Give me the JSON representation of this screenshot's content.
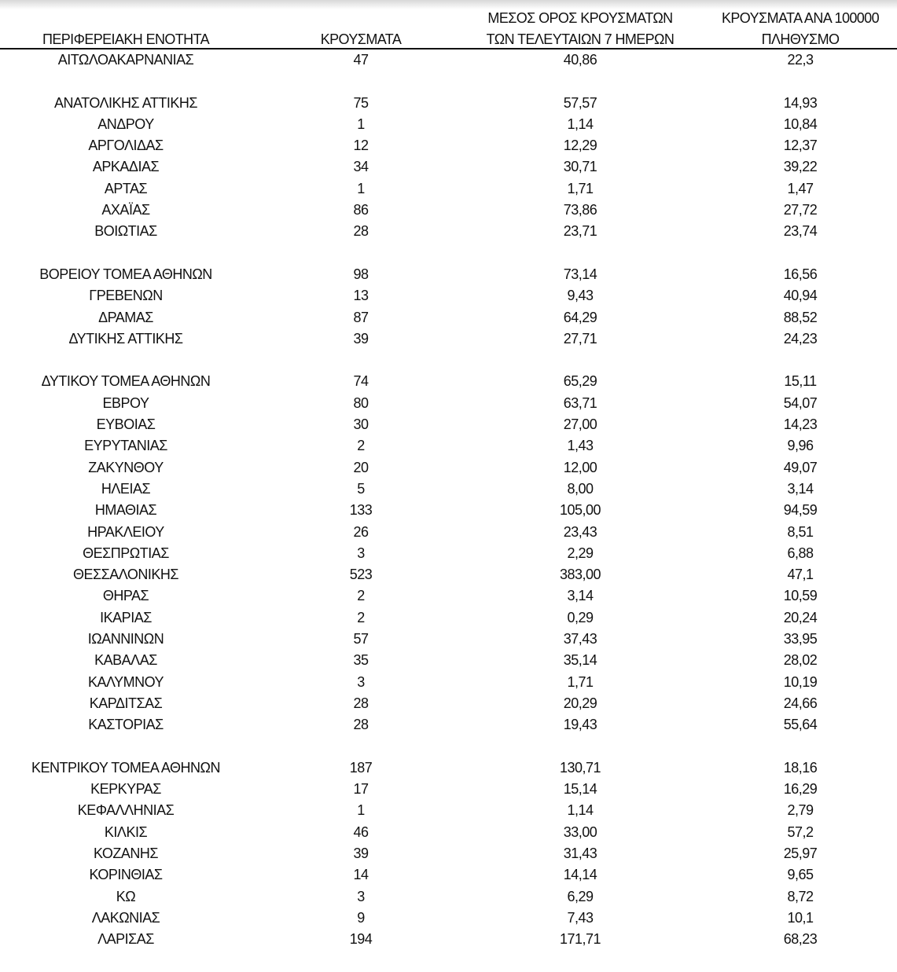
{
  "headers": {
    "region": "ΠΕΡΙΦΕΡΕΙΑΚΗ ΕΝΟΤΗΤΑ",
    "cases": "ΚΡΟΥΣΜΑΤΑ",
    "avg_line1": "ΜΕΣΟΣ ΟΡΟΣ ΚΡΟΥΣΜΑΤΩΝ",
    "avg_line2": "ΤΩΝ ΤΕΛΕΥΤΑΙΩΝ 7 ΗΜΕΡΩΝ",
    "per100k_line1": "ΚΡΟΥΣΜΑΤΑ ΑΝΑ 100000",
    "per100k_line2": "ΠΛΗΘΥΣΜΟ"
  },
  "groups": [
    [
      [
        "ΑΙΤΩΛΟΑΚΑΡΝΑΝΙΑΣ",
        "47",
        "40,86",
        "22,3"
      ]
    ],
    [
      [
        "ΑΝΑΤΟΛΙΚΗΣ ΑΤΤΙΚΗΣ",
        "75",
        "57,57",
        "14,93"
      ],
      [
        "ΑΝΔΡΟΥ",
        "1",
        "1,14",
        "10,84"
      ],
      [
        "ΑΡΓΟΛΙΔΑΣ",
        "12",
        "12,29",
        "12,37"
      ],
      [
        "ΑΡΚΑΔΙΑΣ",
        "34",
        "30,71",
        "39,22"
      ],
      [
        "ΑΡΤΑΣ",
        "1",
        "1,71",
        "1,47"
      ],
      [
        "ΑΧΑΪΑΣ",
        "86",
        "73,86",
        "27,72"
      ],
      [
        "ΒΟΙΩΤΙΑΣ",
        "28",
        "23,71",
        "23,74"
      ]
    ],
    [
      [
        "ΒΟΡΕΙΟΥ ΤΟΜΕΑ ΑΘΗΝΩΝ",
        "98",
        "73,14",
        "16,56"
      ],
      [
        "ΓΡΕΒΕΝΩΝ",
        "13",
        "9,43",
        "40,94"
      ],
      [
        "ΔΡΑΜΑΣ",
        "87",
        "64,29",
        "88,52"
      ],
      [
        "ΔΥΤΙΚΗΣ ΑΤΤΙΚΗΣ",
        "39",
        "27,71",
        "24,23"
      ]
    ],
    [
      [
        "ΔΥΤΙΚΟΥ ΤΟΜΕΑ ΑΘΗΝΩΝ",
        "74",
        "65,29",
        "15,11"
      ],
      [
        "ΕΒΡΟΥ",
        "80",
        "63,71",
        "54,07"
      ],
      [
        "ΕΥΒΟΙΑΣ",
        "30",
        "27,00",
        "14,23"
      ],
      [
        "ΕΥΡΥΤΑΝΙΑΣ",
        "2",
        "1,43",
        "9,96"
      ],
      [
        "ΖΑΚΥΝΘΟΥ",
        "20",
        "12,00",
        "49,07"
      ],
      [
        "ΗΛΕΙΑΣ",
        "5",
        "8,00",
        "3,14"
      ],
      [
        "ΗΜΑΘΙΑΣ",
        "133",
        "105,00",
        "94,59"
      ],
      [
        "ΗΡΑΚΛΕΙΟΥ",
        "26",
        "23,43",
        "8,51"
      ],
      [
        "ΘΕΣΠΡΩΤΙΑΣ",
        "3",
        "2,29",
        "6,88"
      ],
      [
        "ΘΕΣΣΑΛΟΝΙΚΗΣ",
        "523",
        "383,00",
        "47,1"
      ],
      [
        "ΘΗΡΑΣ",
        "2",
        "3,14",
        "10,59"
      ],
      [
        "ΙΚΑΡΙΑΣ",
        "2",
        "0,29",
        "20,24"
      ],
      [
        "ΙΩΑΝΝΙΝΩΝ",
        "57",
        "37,43",
        "33,95"
      ],
      [
        "ΚΑΒΑΛΑΣ",
        "35",
        "35,14",
        "28,02"
      ],
      [
        "ΚΑΛΥΜΝΟΥ",
        "3",
        "1,71",
        "10,19"
      ],
      [
        "ΚΑΡΔΙΤΣΑΣ",
        "28",
        "20,29",
        "24,66"
      ],
      [
        "ΚΑΣΤΟΡΙΑΣ",
        "28",
        "19,43",
        "55,64"
      ]
    ],
    [
      [
        "ΚΕΝΤΡΙΚΟΥ ΤΟΜΕΑ ΑΘΗΝΩΝ",
        "187",
        "130,71",
        "18,16"
      ],
      [
        "ΚΕΡΚΥΡΑΣ",
        "17",
        "15,14",
        "16,29"
      ],
      [
        "ΚΕΦΑΛΛΗΝΙΑΣ",
        "1",
        "1,14",
        "2,79"
      ],
      [
        "ΚΙΛΚΙΣ",
        "46",
        "33,00",
        "57,2"
      ],
      [
        "ΚΟΖΑΝΗΣ",
        "39",
        "31,43",
        "25,97"
      ],
      [
        "ΚΟΡΙΝΘΙΑΣ",
        "14",
        "14,14",
        "9,65"
      ],
      [
        "ΚΩ",
        "3",
        "6,29",
        "8,72"
      ],
      [
        "ΛΑΚΩΝΙΑΣ",
        "9",
        "7,43",
        "10,1"
      ],
      [
        "ΛΑΡΙΣΑΣ",
        "194",
        "171,71",
        "68,23"
      ]
    ]
  ]
}
